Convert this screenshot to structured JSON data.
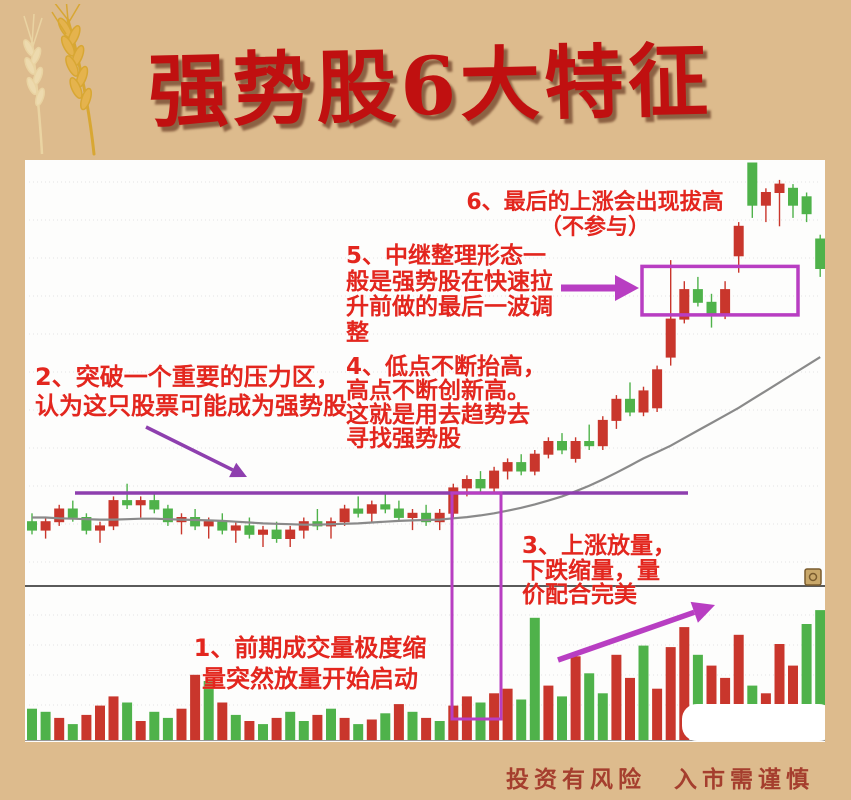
{
  "page": {
    "title": "强势股6大特征",
    "footer": "投资有风险　入市需谨慎",
    "background_color": "#ddbb8d",
    "title_color": "#c01010",
    "footer_color": "#a03124"
  },
  "annotations": [
    {
      "id": 1,
      "lines": [
        "1、前期成交量极度缩",
        "量突然放量开始启动"
      ]
    },
    {
      "id": 2,
      "lines": [
        "2、突破一个重要的压力区，",
        "认为这只股票可能成为强势股"
      ]
    },
    {
      "id": 3,
      "lines": [
        "3、上涨放量，",
        "下跌缩量，量",
        "价配合完美"
      ]
    },
    {
      "id": 4,
      "lines": [
        "4、低点不断抬高，",
        "高点不断创新高。",
        "这就是用去趋势去",
        "寻找强势股"
      ]
    },
    {
      "id": 5,
      "lines": [
        "5、中继整理形态一",
        "般是强势股在快速拉",
        "升前做的最后一波调",
        "整"
      ]
    },
    {
      "id": 6,
      "lines": [
        "6、最后的上涨会出现拔高",
        "（不参与）"
      ]
    }
  ],
  "colors": {
    "candle_up": "#c9362c",
    "candle_down": "#4fb24a",
    "ma_line": "#8a8a8a",
    "grid": "#e3e3e3",
    "divider": "#5a5a5a",
    "resistance_purple": "#8e3fae",
    "highlight_magenta": "#b83ec2",
    "annotation_red": "#e3261e"
  },
  "chart_data": {
    "type": "candlestick",
    "title": "",
    "panes": [
      "price",
      "volume"
    ],
    "axis_labels_visible": false,
    "scale_note": "no numeric axis visible in screenshot; OHLC and volume normalized 0-100",
    "grid": true,
    "candles": [
      [
        15,
        17,
        12,
        13
      ],
      [
        13,
        16,
        11,
        15
      ],
      [
        15,
        19,
        14,
        18
      ],
      [
        18,
        20,
        15,
        16
      ],
      [
        16,
        17,
        12,
        13
      ],
      [
        13,
        15,
        10,
        14
      ],
      [
        14,
        21,
        13,
        20
      ],
      [
        20,
        24,
        18,
        19
      ],
      [
        19,
        21,
        16,
        20
      ],
      [
        20,
        22,
        17,
        18
      ],
      [
        18,
        19,
        14,
        15
      ],
      [
        15,
        17,
        12,
        16
      ],
      [
        16,
        18,
        13,
        14
      ],
      [
        14,
        16,
        11,
        15
      ],
      [
        15,
        17,
        12,
        13
      ],
      [
        13,
        15,
        10,
        14
      ],
      [
        14,
        16,
        11,
        12
      ],
      [
        12,
        14,
        9,
        13
      ],
      [
        13,
        15,
        10,
        11
      ],
      [
        11,
        14,
        9,
        13
      ],
      [
        13,
        16,
        11,
        15
      ],
      [
        15,
        18,
        13,
        14
      ],
      [
        14,
        16,
        11,
        15
      ],
      [
        15,
        19,
        14,
        18
      ],
      [
        18,
        21,
        16,
        17
      ],
      [
        17,
        20,
        15,
        19
      ],
      [
        19,
        22,
        17,
        18
      ],
      [
        18,
        20,
        15,
        16
      ],
      [
        16,
        18,
        13,
        17
      ],
      [
        17,
        19,
        14,
        15
      ],
      [
        15,
        18,
        13,
        17
      ],
      [
        17,
        24,
        16,
        23
      ],
      [
        23,
        26,
        21,
        25
      ],
      [
        25,
        27,
        22,
        23
      ],
      [
        23,
        28,
        22,
        27
      ],
      [
        27,
        30,
        25,
        29
      ],
      [
        29,
        31,
        26,
        27
      ],
      [
        27,
        32,
        26,
        31
      ],
      [
        31,
        35,
        30,
        34
      ],
      [
        34,
        36,
        31,
        32
      ],
      [
        30,
        35,
        29,
        34
      ],
      [
        34,
        38,
        32,
        33
      ],
      [
        33,
        40,
        32,
        39
      ],
      [
        39,
        45,
        37,
        44
      ],
      [
        44,
        48,
        40,
        41
      ],
      [
        41,
        47,
        40,
        46
      ],
      [
        42,
        52,
        41,
        51
      ],
      [
        54,
        77,
        52,
        63
      ],
      [
        63,
        72,
        62,
        70
      ],
      [
        70,
        73,
        66,
        67
      ],
      [
        67,
        69,
        61,
        64
      ],
      [
        64,
        72,
        63,
        70
      ],
      [
        78,
        86,
        74,
        85
      ],
      [
        100,
        100,
        87,
        90
      ],
      [
        90,
        94,
        86,
        93
      ],
      [
        93,
        96,
        85,
        95
      ],
      [
        94,
        95,
        87,
        90
      ],
      [
        92,
        93,
        86,
        88
      ],
      [
        82,
        83,
        73,
        75
      ]
    ],
    "volumes": [
      [
        20,
        "g"
      ],
      [
        18,
        "g"
      ],
      [
        14,
        "r"
      ],
      [
        10,
        "g"
      ],
      [
        16,
        "r"
      ],
      [
        22,
        "r"
      ],
      [
        28,
        "r"
      ],
      [
        24,
        "g"
      ],
      [
        12,
        "r"
      ],
      [
        18,
        "g"
      ],
      [
        14,
        "g"
      ],
      [
        20,
        "r"
      ],
      [
        42,
        "r"
      ],
      [
        38,
        "g"
      ],
      [
        24,
        "r"
      ],
      [
        16,
        "g"
      ],
      [
        12,
        "r"
      ],
      [
        10,
        "g"
      ],
      [
        14,
        "r"
      ],
      [
        18,
        "g"
      ],
      [
        12,
        "g"
      ],
      [
        16,
        "r"
      ],
      [
        20,
        "g"
      ],
      [
        14,
        "r"
      ],
      [
        10,
        "g"
      ],
      [
        13,
        "r"
      ],
      [
        17,
        "g"
      ],
      [
        23,
        "r"
      ],
      [
        18,
        "g"
      ],
      [
        14,
        "r"
      ],
      [
        12,
        "g"
      ],
      [
        22,
        "r"
      ],
      [
        28,
        "r"
      ],
      [
        24,
        "g"
      ],
      [
        30,
        "r"
      ],
      [
        33,
        "r"
      ],
      [
        26,
        "g"
      ],
      [
        79,
        "g"
      ],
      [
        35,
        "r"
      ],
      [
        28,
        "g"
      ],
      [
        54,
        "r"
      ],
      [
        43,
        "g"
      ],
      [
        30,
        "g"
      ],
      [
        55,
        "r"
      ],
      [
        40,
        "r"
      ],
      [
        61,
        "g"
      ],
      [
        33,
        "r"
      ],
      [
        60,
        "r"
      ],
      [
        73,
        "r"
      ],
      [
        55,
        "g"
      ],
      [
        48,
        "r"
      ],
      [
        40,
        "r"
      ],
      [
        68,
        "r"
      ],
      [
        35,
        "g"
      ],
      [
        30,
        "r"
      ],
      [
        62,
        "r"
      ],
      [
        48,
        "r"
      ],
      [
        75,
        "g"
      ],
      [
        84,
        "g"
      ]
    ],
    "ma": [
      16,
      16,
      15.8,
      15.7,
      15.6,
      15.5,
      15.5,
      15.6,
      15.7,
      15.7,
      15.6,
      15.5,
      15.4,
      15.3,
      15.2,
      15.0,
      14.8,
      14.6,
      14.5,
      14.4,
      14.3,
      14.3,
      14.4,
      14.5,
      14.6,
      14.8,
      15.0,
      15.2,
      15.3,
      15.4,
      15.5,
      15.8,
      16.1,
      16.5,
      17.0,
      17.6,
      18.3,
      19.1,
      20.0,
      21.0,
      22.2,
      23.5,
      25.0,
      26.6,
      28.3,
      30.0,
      31.5,
      33.0,
      34.8,
      36.6,
      38.4,
      40.2,
      42.0,
      44.0,
      46.0,
      48.0,
      50.0,
      52.0,
      54.0
    ],
    "overlays": {
      "resistance_line": {
        "price": 21.8,
        "from_candle": 3,
        "to_candle": 48,
        "color": "#8e3fae"
      },
      "breakout_rect": {
        "from_candle": 31,
        "to_candle": 34,
        "note": "vertical highlight from resistance line down through volume pane",
        "color": "#b83ec2"
      },
      "consolidation_box": {
        "from_candle": 47,
        "to_candle": 56,
        "price_low": 64,
        "price_high": 75.5,
        "color": "#b83ec2"
      },
      "arrows": [
        {
          "from_annotation": 2,
          "points_to": "resistance-line",
          "direction": "down-right"
        },
        {
          "from_annotation": 5,
          "points_to": "consolidation-box",
          "direction": "right"
        },
        {
          "from_annotation": 3,
          "points_to": "rising-volume-bars",
          "direction": "up-right"
        }
      ]
    }
  }
}
